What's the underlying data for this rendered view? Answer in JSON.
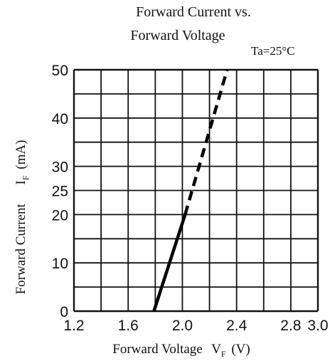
{
  "chart_data": {
    "type": "line",
    "title_line1": "Forward Current vs.",
    "title_line2": "Forward Voltage",
    "condition": "Ta=25°C",
    "xlabel_prefix": "Forward Voltage",
    "xlabel_symbol": "V",
    "xlabel_sub": "F",
    "xlabel_unit": "(V)",
    "ylabel_prefix": "Forward Current",
    "ylabel_symbol": "I",
    "ylabel_sub": "F",
    "ylabel_unit": "(mA)",
    "xlim": [
      1.2,
      3.0
    ],
    "ylim": [
      0,
      50
    ],
    "x_ticks": [
      1.2,
      1.6,
      2.0,
      2.4,
      2.8,
      3.0
    ],
    "x_tick_labels": [
      "1.2",
      "1.6",
      "2.0",
      "2.4",
      "2.8",
      "3.0"
    ],
    "y_ticks": [
      0,
      10,
      20,
      25,
      30,
      40,
      50
    ],
    "y_tick_labels": [
      "0",
      "10",
      "20",
      "25",
      "30",
      "40",
      "50"
    ],
    "grid": true,
    "series": [
      {
        "style": "solid",
        "x": [
          1.79,
          2.02
        ],
        "y": [
          0,
          20
        ]
      },
      {
        "style": "dashed",
        "x": [
          2.02,
          2.33
        ],
        "y": [
          20,
          50
        ]
      }
    ]
  }
}
